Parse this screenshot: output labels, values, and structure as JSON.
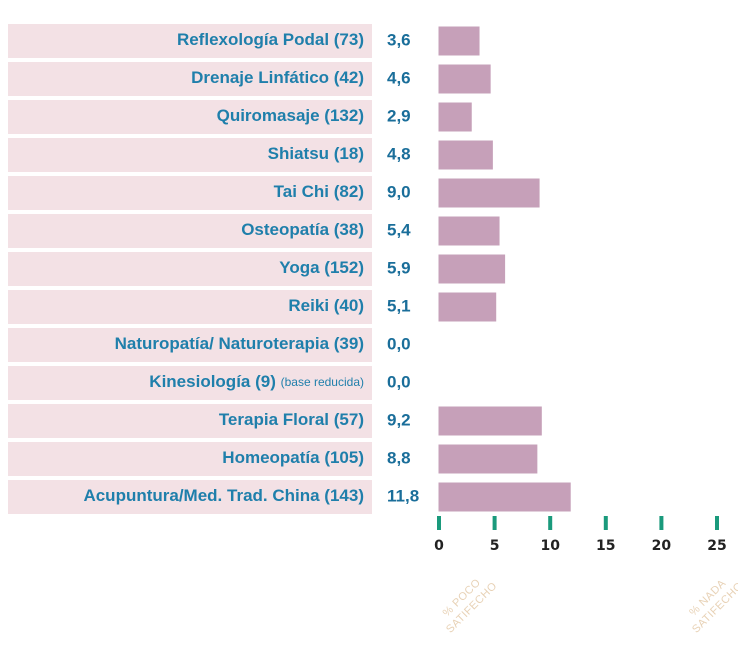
{
  "chart_data": {
    "type": "hbar",
    "categories": [
      "Reflexología Podal (73)",
      "Drenaje Linfático (42)",
      "Quiromasaje (132)",
      "Shiatsu (18)",
      "Tai Chi (82)",
      "Osteopatía (38)",
      "Yoga (152)",
      "Reiki (40)",
      "Naturopatía/ Naturoterapia (39)",
      "Kinesiología (9)",
      "Terapia Floral (57)",
      "Homeopatía (105)",
      "Acupuntura/Med. Trad. China (143)"
    ],
    "category_notes": [
      null,
      null,
      null,
      null,
      null,
      null,
      null,
      null,
      null,
      "(base reducida)",
      null,
      null,
      null
    ],
    "values": [
      3.6,
      4.6,
      2.9,
      4.8,
      9.0,
      5.4,
      5.9,
      5.1,
      0.0,
      0.0,
      9.2,
      8.8,
      11.8
    ],
    "value_labels": [
      "3,6",
      "4,6",
      "2,9",
      "4,8",
      "9,0",
      "5,4",
      "5,9",
      "5,1",
      "0,0",
      "0,0",
      "9,2",
      "8,8",
      "11,8"
    ],
    "color": "#c6a0b9",
    "xlim": [
      0,
      25
    ],
    "xticks": [
      0,
      5,
      10,
      15,
      20,
      25
    ],
    "tick_color": "#1a9a7c",
    "annotations": [
      [
        "% POCO",
        "SATIFECHO"
      ],
      [
        "% NADA",
        "SATIFECHO"
      ]
    ]
  }
}
